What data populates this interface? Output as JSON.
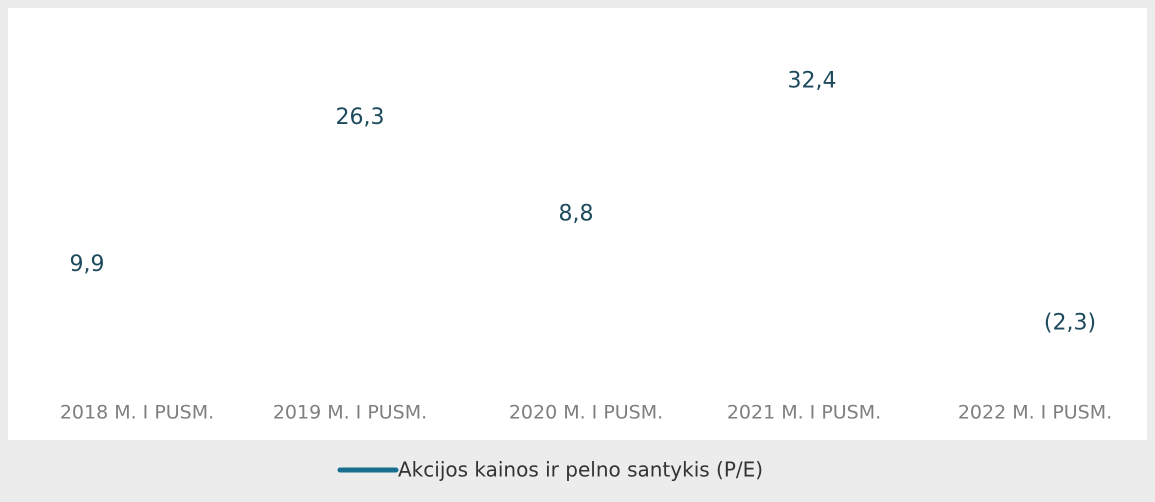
{
  "chart_data": {
    "type": "line",
    "categories": [
      "2018 M. I PUSM.",
      "2019 M. I PUSM.",
      "2020 M. I PUSM.",
      "2021 M. I PUSM.",
      "2022 M. I PUSM."
    ],
    "series": [
      {
        "name": "Akcijos kainos ir pelno santykis (P/E)",
        "color": "#1a6f8f",
        "values": [
          9.9,
          26.3,
          8.8,
          32.4,
          -2.3
        ],
        "value_labels": [
          "9,9",
          "26,3",
          "8,8",
          "32,4",
          "(2,3)"
        ]
      }
    ],
    "ylim": [
      -10,
      40
    ],
    "legend": "bottom"
  }
}
